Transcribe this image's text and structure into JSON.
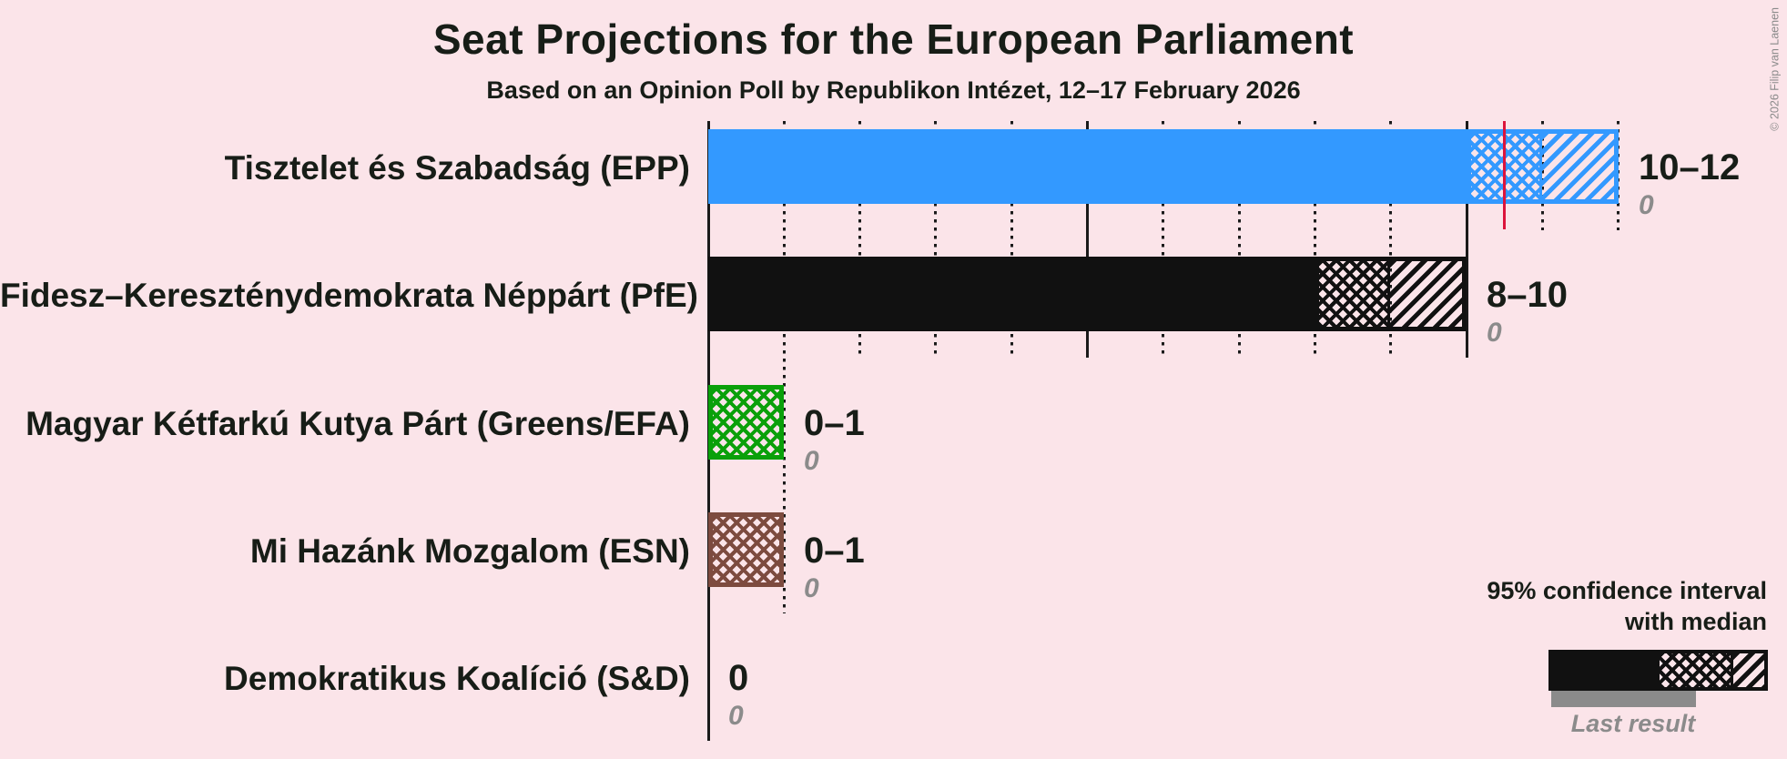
{
  "header": {
    "title": "Seat Projections for the European Parliament",
    "subtitle": "Based on an Opinion Poll by Republikon Intézet, 12–17 February 2026",
    "copyright": "© 2026 Filip van Laenen"
  },
  "legend": {
    "ci_line1": "95% confidence interval",
    "ci_line2": "with median",
    "last_result_label": "Last result",
    "sample_bar_color": "#111111",
    "last_result_bar_color": "#8b8b8b"
  },
  "colors": {
    "background": "#fbe4e9",
    "gridline": "#1a1a1a",
    "text": "#171d17",
    "last_result_text": "#8b8b8b",
    "median_marker": "#dc143c"
  },
  "chart_data": {
    "type": "bar",
    "orientation": "horizontal",
    "title": "Seat Projections for the European Parliament",
    "subtitle": "Based on an Opinion Poll by Republikon Intézet, 12–17 February 2026",
    "x_axis": {
      "min": 0,
      "max": 12,
      "unit": "seats",
      "solid_gridline_every": 5,
      "dotted_gridline_every": 1,
      "tick_labels_visible": false
    },
    "series": [
      {
        "party": "Tisztelet és Szabadság (EPP)",
        "color": "#3399ff",
        "ci_low": 10,
        "median": 11,
        "ci_high": 12,
        "median_marker": 10.5,
        "value_label": "10–12",
        "last_result": 0,
        "last_result_label": "0"
      },
      {
        "party": "Fidesz–Kereszténydemokrata Néppárt (PfE)",
        "color": "#111111",
        "ci_low": 8,
        "median": 9,
        "ci_high": 10,
        "median_marker": null,
        "value_label": "8–10",
        "last_result": 0,
        "last_result_label": "0"
      },
      {
        "party": "Magyar Kétfarkú Kutya Párt (Greens/EFA)",
        "color": "#0aa00a",
        "ci_low": 0,
        "median": 1,
        "ci_high": 1,
        "median_marker": null,
        "value_label": "0–1",
        "last_result": 0,
        "last_result_label": "0"
      },
      {
        "party": "Mi Hazánk Mozgalom (ESN)",
        "color": "#7d4b3f",
        "ci_low": 0,
        "median": 1,
        "ci_high": 1,
        "median_marker": null,
        "value_label": "0–1",
        "last_result": 0,
        "last_result_label": "0"
      },
      {
        "party": "Demokratikus Koalíció (S&D)",
        "color": null,
        "ci_low": 0,
        "median": 0,
        "ci_high": 0,
        "median_marker": null,
        "value_label": "0",
        "last_result": 0,
        "last_result_label": "0"
      }
    ]
  }
}
